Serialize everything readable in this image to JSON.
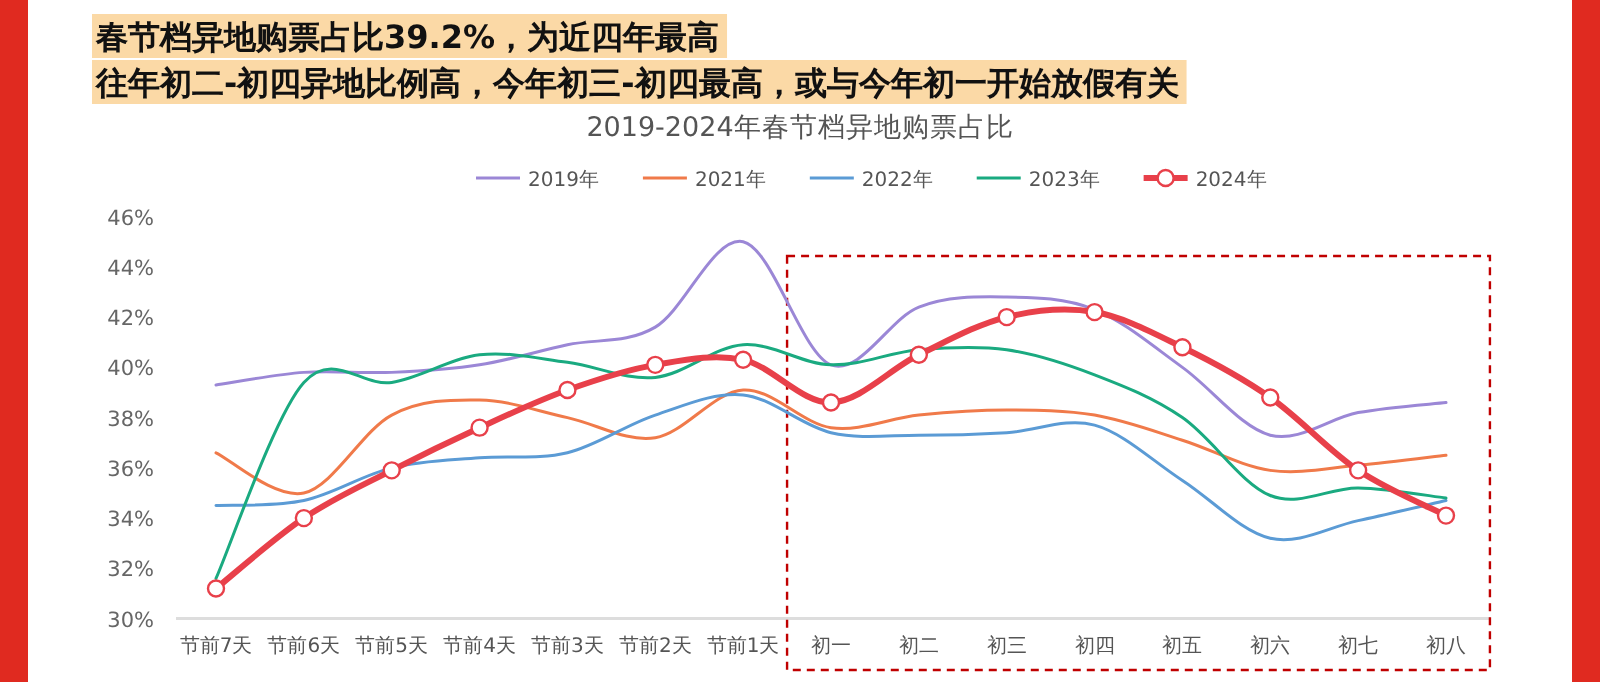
{
  "chart_data": {
    "type": "line",
    "title": "2019-2024年春节档异地购票占比",
    "annotations": [
      "春节档异地购票占比39.2%，为近四年最高",
      "往年初二-初四异地比例高，今年初三-初四最高，或与今年初一开始放假有关"
    ],
    "categories": [
      "节前7天",
      "节前6天",
      "节前5天",
      "节前4天",
      "节前3天",
      "节前2天",
      "节前1天",
      "初一",
      "初二",
      "初三",
      "初四",
      "初五",
      "初六",
      "初七",
      "初八"
    ],
    "series": [
      {
        "name": "2019年",
        "color": "#9b87d6",
        "values": [
          39.3,
          39.8,
          39.8,
          40.1,
          40.9,
          41.6,
          45.0,
          40.1,
          42.4,
          42.8,
          42.3,
          40.0,
          37.3,
          38.2,
          38.6
        ]
      },
      {
        "name": "2021年",
        "color": "#f07a4a",
        "values": [
          36.6,
          35.0,
          38.1,
          38.7,
          38.0,
          37.2,
          39.1,
          37.6,
          38.1,
          38.3,
          38.1,
          37.1,
          35.9,
          36.1,
          36.5
        ]
      },
      {
        "name": "2022年",
        "color": "#5b9bd5",
        "values": [
          34.5,
          34.7,
          36.0,
          36.4,
          36.6,
          38.1,
          38.9,
          37.4,
          37.3,
          37.4,
          37.7,
          35.5,
          33.2,
          33.9,
          34.7
        ]
      },
      {
        "name": "2023年",
        "color": "#1aaa80",
        "values": [
          31.6,
          39.4,
          39.4,
          40.5,
          40.2,
          39.6,
          40.9,
          40.1,
          40.7,
          40.7,
          39.7,
          38.0,
          34.9,
          35.2,
          34.8
        ]
      },
      {
        "name": "2024年",
        "color": "#e8404a",
        "marker": "circle",
        "values": [
          31.2,
          34.0,
          35.9,
          37.6,
          39.1,
          40.1,
          40.3,
          38.6,
          40.5,
          42.0,
          42.2,
          40.8,
          38.8,
          35.9,
          34.1
        ]
      }
    ],
    "ylim": [
      30,
      46
    ],
    "yticks": [
      {
        "value": 30,
        "label": "30%"
      },
      {
        "value": 32,
        "label": "32%"
      },
      {
        "value": 34,
        "label": "34%"
      },
      {
        "value": 36,
        "label": "36%"
      },
      {
        "value": 38,
        "label": "38%"
      },
      {
        "value": 40,
        "label": "40%"
      },
      {
        "value": 42,
        "label": "42%"
      },
      {
        "value": 44,
        "label": "44%"
      },
      {
        "value": 46,
        "label": "46%"
      }
    ],
    "legend": "top",
    "grid": false
  }
}
